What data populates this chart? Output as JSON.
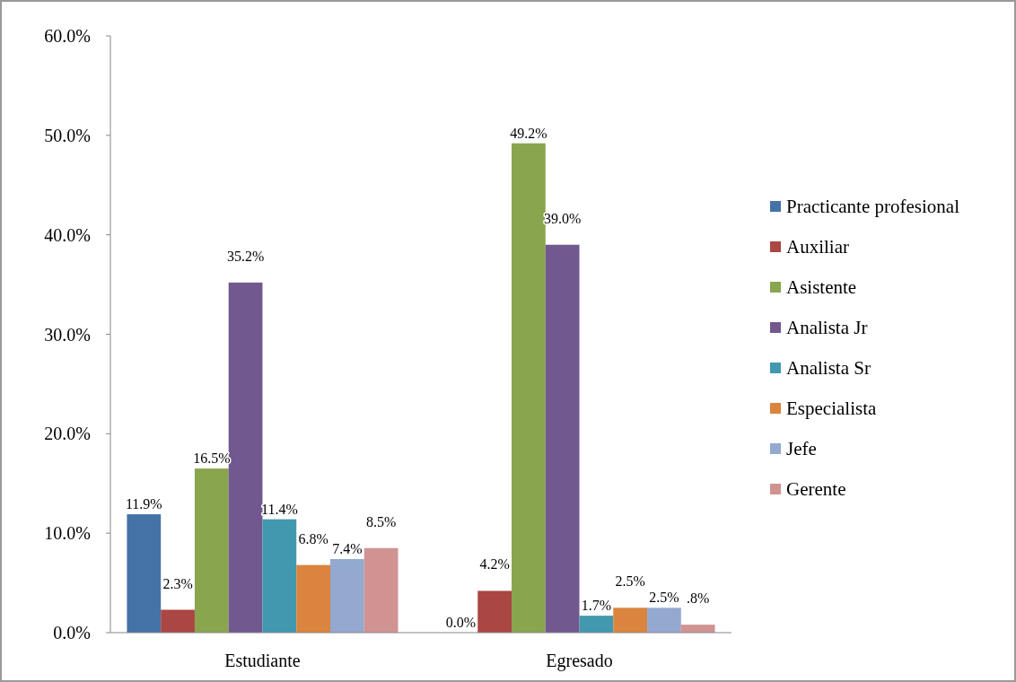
{
  "chart_data": {
    "type": "bar",
    "categories": [
      "Estudiante",
      "Egresado"
    ],
    "series": [
      {
        "name": "Practicante profesional",
        "color": "#4572a7",
        "values": [
          11.9,
          0.0
        ],
        "value_labels": [
          "11.9%",
          "0.0%"
        ]
      },
      {
        "name": "Auxiliar",
        "color": "#aa4643",
        "values": [
          2.3,
          4.2
        ],
        "value_labels": [
          "2.3%",
          "4.2%"
        ]
      },
      {
        "name": "Asistente",
        "color": "#89a54e",
        "values": [
          16.5,
          49.2
        ],
        "value_labels": [
          "16.5%",
          "49.2%"
        ]
      },
      {
        "name": "Analista Jr",
        "color": "#71588f",
        "values": [
          35.2,
          39.0
        ],
        "value_labels": [
          "35.2%",
          "39.0%"
        ]
      },
      {
        "name": "Analista Sr",
        "color": "#4198af",
        "values": [
          11.4,
          1.7
        ],
        "value_labels": [
          "11.4%",
          "1.7%"
        ]
      },
      {
        "name": "Especialista",
        "color": "#db843d",
        "values": [
          6.8,
          2.5
        ],
        "value_labels": [
          "6.8%",
          "2.5%"
        ]
      },
      {
        "name": "Jefe",
        "color": "#93a9cf",
        "values": [
          7.4,
          2.5
        ],
        "value_labels": [
          "7.4%",
          "2.5%"
        ]
      },
      {
        "name": "Gerente",
        "color": "#d19392",
        "values": [
          8.5,
          0.8
        ],
        "value_labels": [
          "8.5%",
          ".8%"
        ]
      }
    ],
    "ylim": [
      0,
      60
    ],
    "yticks": [
      {
        "value": 0,
        "label": "0.0%"
      },
      {
        "value": 10,
        "label": "10.0%"
      },
      {
        "value": 20,
        "label": "20.0%"
      },
      {
        "value": 30,
        "label": "30.0%"
      },
      {
        "value": 40,
        "label": "40.0%"
      },
      {
        "value": 50,
        "label": "50.0%"
      },
      {
        "value": 60,
        "label": "60.0%"
      }
    ],
    "grid": false,
    "legend": "right"
  }
}
